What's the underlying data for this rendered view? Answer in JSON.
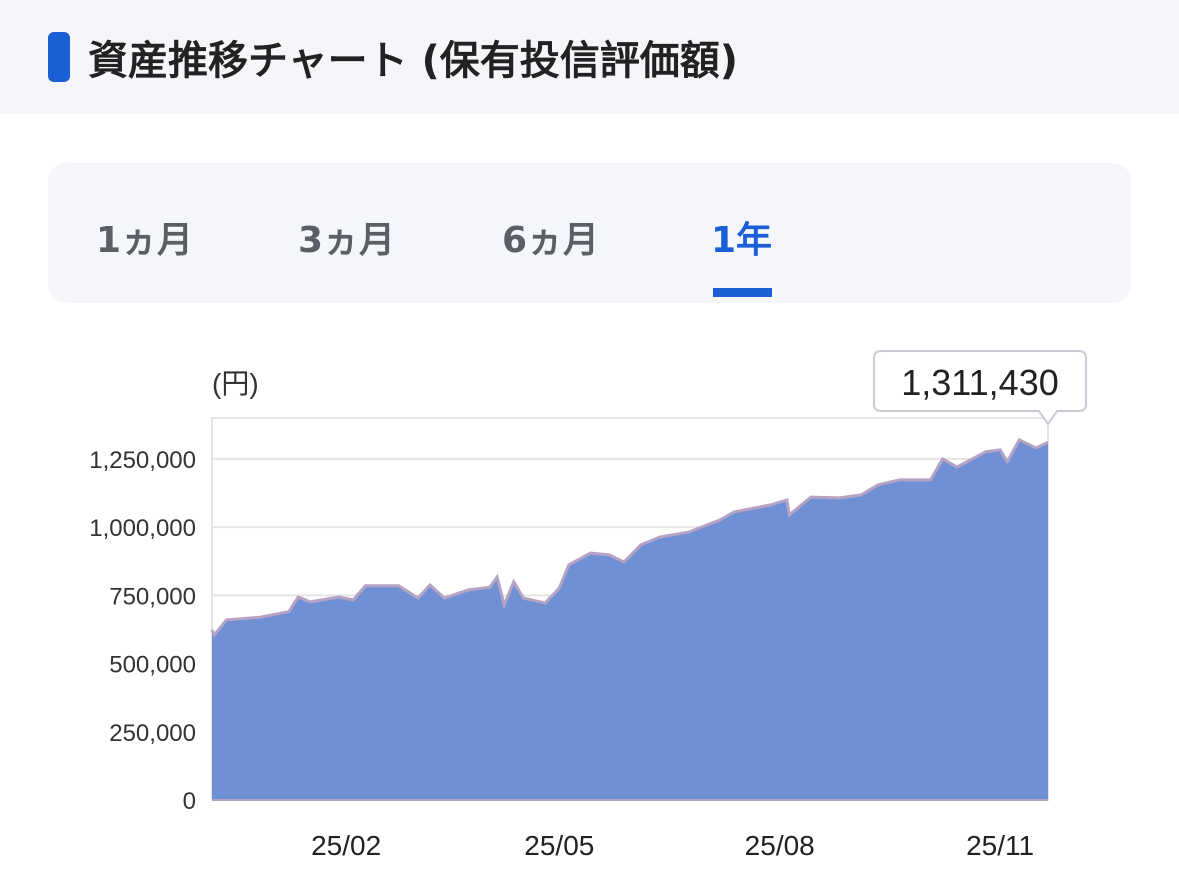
{
  "header": {
    "title": "資産推移チャート (保有投信評価額)",
    "accent_color": "#1a5fd6"
  },
  "tabs": [
    {
      "label": "1ヵ月",
      "active": false
    },
    {
      "label": "3ヵ月",
      "active": false
    },
    {
      "label": "6ヵ月",
      "active": false
    },
    {
      "label": "1年",
      "active": true
    }
  ],
  "chart_data": {
    "type": "area",
    "unit_label": "(円)",
    "tooltip_value": "1,311,430",
    "ylim": [
      0,
      1400000
    ],
    "yticks": [
      0,
      250000,
      500000,
      750000,
      1000000,
      1250000
    ],
    "ytick_labels": [
      "0",
      "250,000",
      "500,000",
      "750,000",
      "1,000,000",
      "1,250,000"
    ],
    "xlim": [
      "2024-12-07",
      "2025-11-21"
    ],
    "xticks": [
      "2025-02-01",
      "2025-05-01",
      "2025-08-01",
      "2025-11-01"
    ],
    "xtick_labels": [
      "25/02",
      "25/05",
      "25/08",
      "25/11"
    ],
    "grid": true,
    "fill_color": "#7090d6",
    "line_color": "#b5a3c4",
    "points": [
      [
        "2024-12-07",
        623000
      ],
      [
        "2024-12-08",
        605000
      ],
      [
        "2024-12-13",
        660000
      ],
      [
        "2024-12-27",
        670000
      ],
      [
        "2025-01-08",
        690000
      ],
      [
        "2025-01-12",
        744000
      ],
      [
        "2025-01-17",
        726000
      ],
      [
        "2025-01-29",
        744000
      ],
      [
        "2025-02-04",
        733000
      ],
      [
        "2025-02-09",
        785000
      ],
      [
        "2025-02-23",
        785000
      ],
      [
        "2025-03-03",
        740000
      ],
      [
        "2025-03-08",
        788000
      ],
      [
        "2025-03-14",
        740000
      ],
      [
        "2025-03-24",
        770000
      ],
      [
        "2025-04-02",
        780000
      ],
      [
        "2025-04-05",
        817000
      ],
      [
        "2025-04-08",
        715000
      ],
      [
        "2025-04-12",
        800000
      ],
      [
        "2025-04-16",
        740000
      ],
      [
        "2025-04-25",
        722000
      ],
      [
        "2025-05-01",
        777000
      ],
      [
        "2025-05-05",
        862000
      ],
      [
        "2025-05-14",
        905000
      ],
      [
        "2025-05-22",
        898000
      ],
      [
        "2025-05-28",
        872000
      ],
      [
        "2025-06-04",
        935000
      ],
      [
        "2025-06-12",
        964000
      ],
      [
        "2025-06-24",
        982000
      ],
      [
        "2025-07-07",
        1026000
      ],
      [
        "2025-07-13",
        1056000
      ],
      [
        "2025-07-28",
        1081000
      ],
      [
        "2025-08-04",
        1100000
      ],
      [
        "2025-08-05",
        1045000
      ],
      [
        "2025-08-14",
        1110000
      ],
      [
        "2025-08-26",
        1107000
      ],
      [
        "2025-09-04",
        1118000
      ],
      [
        "2025-09-11",
        1155000
      ],
      [
        "2025-09-20",
        1173000
      ],
      [
        "2025-10-03",
        1173000
      ],
      [
        "2025-10-08",
        1250000
      ],
      [
        "2025-10-14",
        1220000
      ],
      [
        "2025-10-26",
        1276000
      ],
      [
        "2025-11-01",
        1283000
      ],
      [
        "2025-11-04",
        1240000
      ],
      [
        "2025-11-09",
        1320000
      ],
      [
        "2025-11-16",
        1290000
      ],
      [
        "2025-11-21",
        1311430
      ]
    ]
  }
}
